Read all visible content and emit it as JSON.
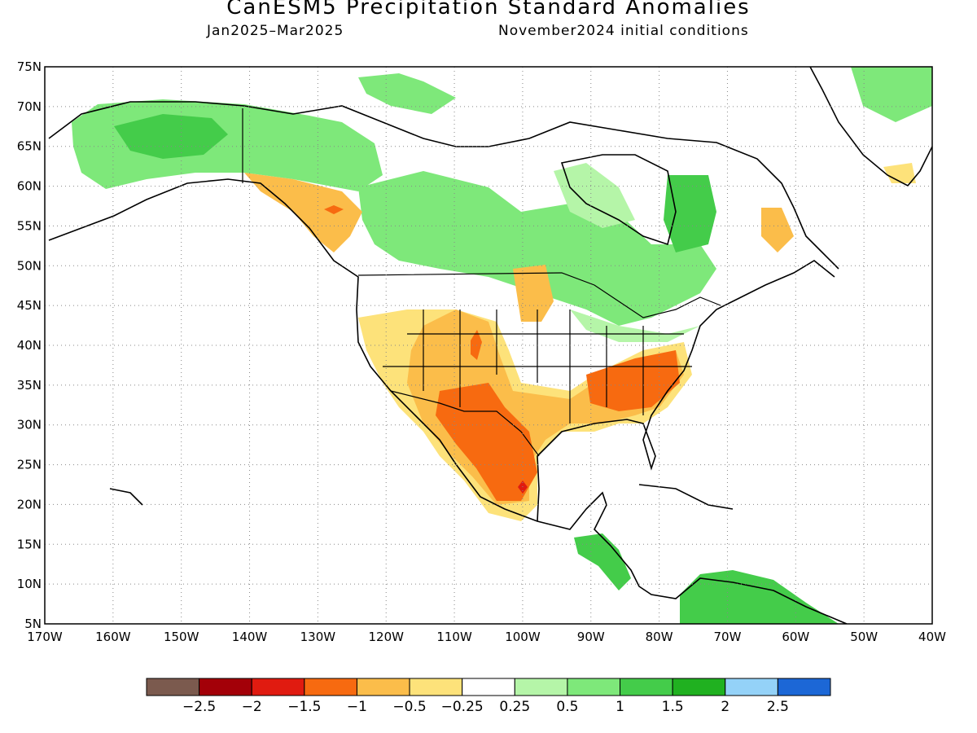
{
  "header": {
    "title": "CanESM5 Precipitation Standard Anomalies",
    "period": "Jan2025–Mar2025",
    "initial_conditions": "November2024 initial conditions"
  },
  "map": {
    "lon_range": [
      -170,
      -40
    ],
    "lat_range": [
      5,
      75
    ],
    "lat_ticks": [
      "75N",
      "70N",
      "65N",
      "60N",
      "55N",
      "50N",
      "45N",
      "40N",
      "35N",
      "30N",
      "25N",
      "20N",
      "15N",
      "10N",
      "5N"
    ],
    "lon_ticks": [
      "170W",
      "160W",
      "150W",
      "140W",
      "130W",
      "120W",
      "110W",
      "100W",
      "90W",
      "80W",
      "70W",
      "60W",
      "50W",
      "40W"
    ],
    "grid": "dotted"
  },
  "colorbar": {
    "colors": [
      "#7b5a4e",
      "#a30008",
      "#e01b10",
      "#f76a10",
      "#fbbd4a",
      "#fde27a",
      "#ffffff",
      "#b5f5a8",
      "#7ee87a",
      "#44cc4a",
      "#20b120",
      "#94d2f8",
      "#1c67d6"
    ],
    "labels": [
      "−2.5",
      "−2",
      "−1.5",
      "−1",
      "−0.5",
      "−0.25",
      "0.25",
      "0.5",
      "1",
      "1.5",
      "2",
      "2.5"
    ]
  }
}
